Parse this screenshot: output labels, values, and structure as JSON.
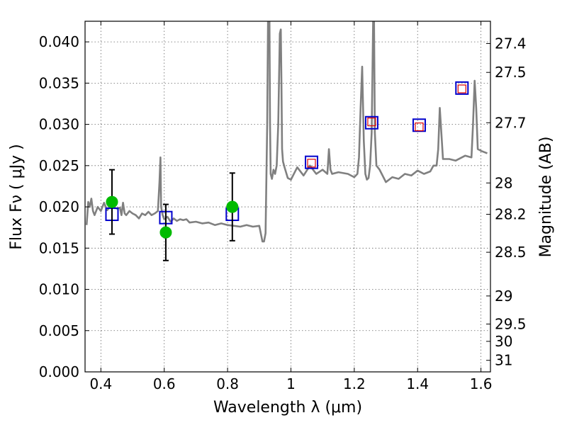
{
  "chart_data": {
    "type": "line",
    "xlabel": "Wavelength  λ (μm)",
    "ylabel": "Flux  Fν  ( μJy )",
    "ylabel_right": "Magnitude (AB)",
    "xlim": [
      0.35,
      1.63
    ],
    "ylim": [
      0.0,
      0.0425
    ],
    "grid": true,
    "x_ticks": [
      0.4,
      0.6,
      0.8,
      1.0,
      1.2,
      1.4,
      1.6
    ],
    "x_tick_labels": [
      "0.4",
      "0.6",
      "0.8",
      "1",
      "1.2",
      "1.4",
      "1.6"
    ],
    "y_ticks": [
      0.0,
      0.005,
      0.01,
      0.015,
      0.02,
      0.025,
      0.03,
      0.035,
      0.04
    ],
    "y_tick_labels": [
      "0.000",
      "0.005",
      "0.010",
      "0.015",
      "0.020",
      "0.025",
      "0.030",
      "0.035",
      "0.040"
    ],
    "right_ticks": [
      {
        "label": "27.4",
        "flux": 0.0398
      },
      {
        "label": "27.5",
        "flux": 0.0363
      },
      {
        "label": "27.7",
        "flux": 0.0302
      },
      {
        "label": "28",
        "flux": 0.0229
      },
      {
        "label": "28.2",
        "flux": 0.0191
      },
      {
        "label": "28.5",
        "flux": 0.0145
      },
      {
        "label": "29",
        "flux": 0.0092
      },
      {
        "label": "29.5",
        "flux": 0.0058
      },
      {
        "label": "30",
        "flux": 0.0037
      },
      {
        "label": "31",
        "flux": 0.0014
      }
    ],
    "series": [
      {
        "name": "model-spectrum",
        "color": "#808080",
        "x": [
          0.355,
          0.36,
          0.365,
          0.37,
          0.375,
          0.38,
          0.39,
          0.4,
          0.41,
          0.42,
          0.43,
          0.44,
          0.45,
          0.46,
          0.465,
          0.47,
          0.475,
          0.48,
          0.49,
          0.5,
          0.51,
          0.52,
          0.53,
          0.54,
          0.55,
          0.56,
          0.57,
          0.58,
          0.585,
          0.588,
          0.59,
          0.595,
          0.6,
          0.61,
          0.62,
          0.63,
          0.64,
          0.65,
          0.66,
          0.67,
          0.68,
          0.7,
          0.72,
          0.74,
          0.76,
          0.78,
          0.8,
          0.82,
          0.84,
          0.86,
          0.88,
          0.9,
          0.91,
          0.915,
          0.92,
          0.925,
          0.928,
          0.93,
          0.932,
          0.934,
          0.936,
          0.94,
          0.945,
          0.95,
          0.955,
          0.96,
          0.965,
          0.968,
          0.97,
          0.972,
          0.975,
          0.98,
          0.99,
          1.0,
          1.02,
          1.04,
          1.06,
          1.08,
          1.1,
          1.115,
          1.12,
          1.125,
          1.13,
          1.15,
          1.18,
          1.2,
          1.21,
          1.215,
          1.22,
          1.225,
          1.23,
          1.235,
          1.24,
          1.245,
          1.25,
          1.255,
          1.26,
          1.262,
          1.265,
          1.27,
          1.28,
          1.3,
          1.32,
          1.34,
          1.36,
          1.38,
          1.4,
          1.42,
          1.44,
          1.45,
          1.46,
          1.465,
          1.47,
          1.475,
          1.48,
          1.5,
          1.52,
          1.55,
          1.57,
          1.575,
          1.58,
          1.585,
          1.59,
          1.6,
          1.62
        ],
        "y": [
          0.0178,
          0.0206,
          0.02,
          0.021,
          0.0195,
          0.019,
          0.02,
          0.0195,
          0.0205,
          0.0196,
          0.0201,
          0.02,
          0.0198,
          0.0199,
          0.019,
          0.0205,
          0.0192,
          0.019,
          0.0195,
          0.0192,
          0.019,
          0.0186,
          0.0192,
          0.019,
          0.0194,
          0.019,
          0.0192,
          0.0195,
          0.023,
          0.026,
          0.02,
          0.019,
          0.0185,
          0.0188,
          0.0182,
          0.0186,
          0.0183,
          0.0185,
          0.0184,
          0.0185,
          0.0181,
          0.0182,
          0.018,
          0.0181,
          0.0178,
          0.018,
          0.0178,
          0.0177,
          0.0176,
          0.0178,
          0.0176,
          0.0177,
          0.0158,
          0.0158,
          0.0168,
          0.03,
          0.044,
          0.044,
          0.044,
          0.03,
          0.024,
          0.0234,
          0.0245,
          0.024,
          0.025,
          0.03,
          0.041,
          0.0415,
          0.035,
          0.027,
          0.0255,
          0.0248,
          0.0235,
          0.0233,
          0.0248,
          0.0238,
          0.025,
          0.024,
          0.0245,
          0.024,
          0.027,
          0.0245,
          0.024,
          0.0242,
          0.024,
          0.0236,
          0.024,
          0.026,
          0.032,
          0.037,
          0.028,
          0.024,
          0.0233,
          0.0235,
          0.025,
          0.029,
          0.044,
          0.044,
          0.029,
          0.025,
          0.0245,
          0.023,
          0.0236,
          0.0234,
          0.024,
          0.0238,
          0.0244,
          0.024,
          0.0243,
          0.025,
          0.025,
          0.027,
          0.032,
          0.029,
          0.0258,
          0.0258,
          0.0256,
          0.0262,
          0.026,
          0.03,
          0.0353,
          0.032,
          0.027,
          0.0268,
          0.0265
        ],
        "label": ""
      }
    ],
    "observed_points": {
      "name": "observed-photometry",
      "color": "#00bb00",
      "x": [
        0.435,
        0.605,
        0.815
      ],
      "y": [
        0.0206,
        0.0169,
        0.02
      ],
      "yerr": [
        0.0039,
        0.0034,
        0.0041
      ]
    },
    "model_boxes": {
      "name": "model-photometry",
      "color": "#0000cc",
      "x": [
        0.435,
        0.605,
        0.815,
        1.065,
        1.255,
        1.405,
        1.54
      ],
      "y": [
        0.0191,
        0.0187,
        0.0191,
        0.0254,
        0.0302,
        0.0299,
        0.0344
      ]
    },
    "data_boxes": {
      "name": "data-photometry-red",
      "color": "#dd0000",
      "x": [
        1.065,
        1.255,
        1.405,
        1.54
      ],
      "y": [
        0.0253,
        0.0303,
        0.0297,
        0.0343
      ]
    }
  }
}
